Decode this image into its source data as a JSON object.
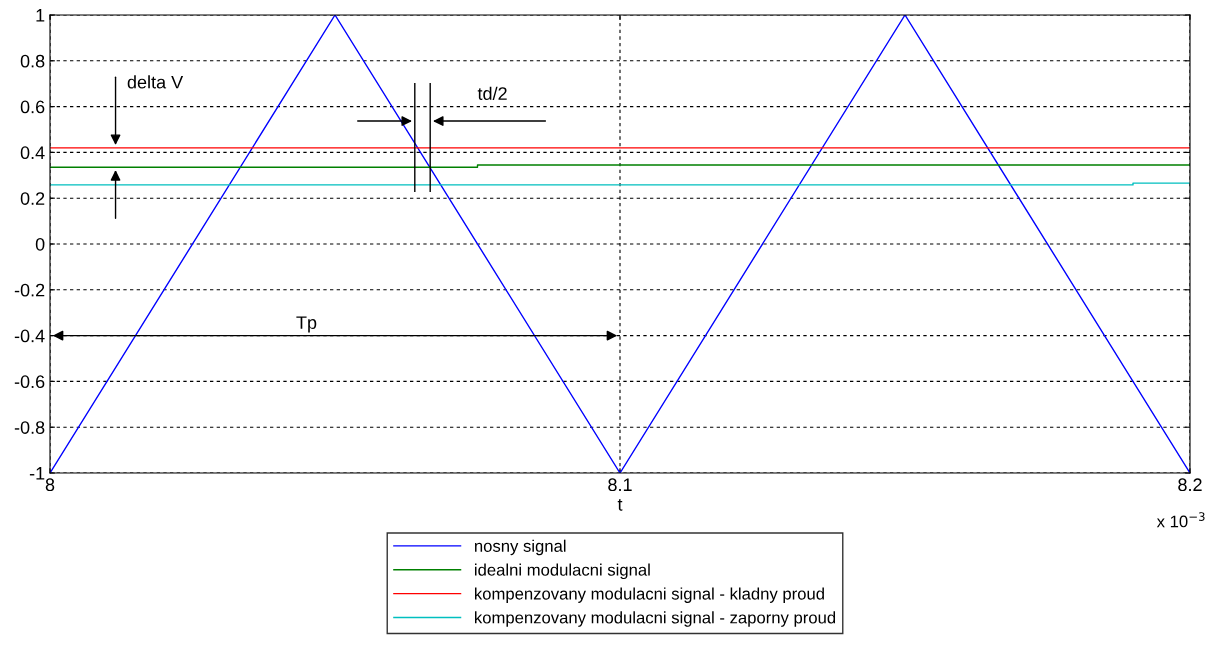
{
  "chart_data": {
    "type": "line",
    "xlabel": "t",
    "xlim": [
      8,
      8.2
    ],
    "xticks": [
      8,
      8.1,
      8.2
    ],
    "ylim": [
      -1,
      1
    ],
    "yticks": [
      -1,
      -0.8,
      -0.6,
      -0.4,
      -0.2,
      0,
      0.2,
      0.4,
      0.6,
      0.8,
      1
    ],
    "grid": true,
    "legend": "bottom",
    "line_style": "solid",
    "marker": "none",
    "series": [
      {
        "name": "nosny signal",
        "color": "#0000ff",
        "x": [
          8,
          8.05,
          8.1,
          8.15,
          8.2
        ],
        "values": [
          -1,
          1,
          -1,
          1,
          -1
        ]
      },
      {
        "name": "idealni modulacni signal",
        "color": "#008000",
        "x": [
          8,
          8.075,
          8.075,
          8.2
        ],
        "values": [
          0.335,
          0.335,
          0.345,
          0.345
        ]
      },
      {
        "name": "kompenzovany modulacni signal - kladny proud",
        "color": "#ff0000",
        "x": [
          8,
          8.2
        ],
        "values": [
          0.42,
          0.42
        ]
      },
      {
        "name": "kompenzovany modulacni signal - zaporny proud",
        "color": "#00bfbf",
        "x": [
          8,
          8.19,
          8.19,
          8.2
        ],
        "values": [
          0.258,
          0.258,
          0.266,
          0.266
        ]
      }
    ],
    "annotations": [
      "delta V",
      "td/2",
      "Tp",
      "x 10$^{−3}$"
    ]
  }
}
